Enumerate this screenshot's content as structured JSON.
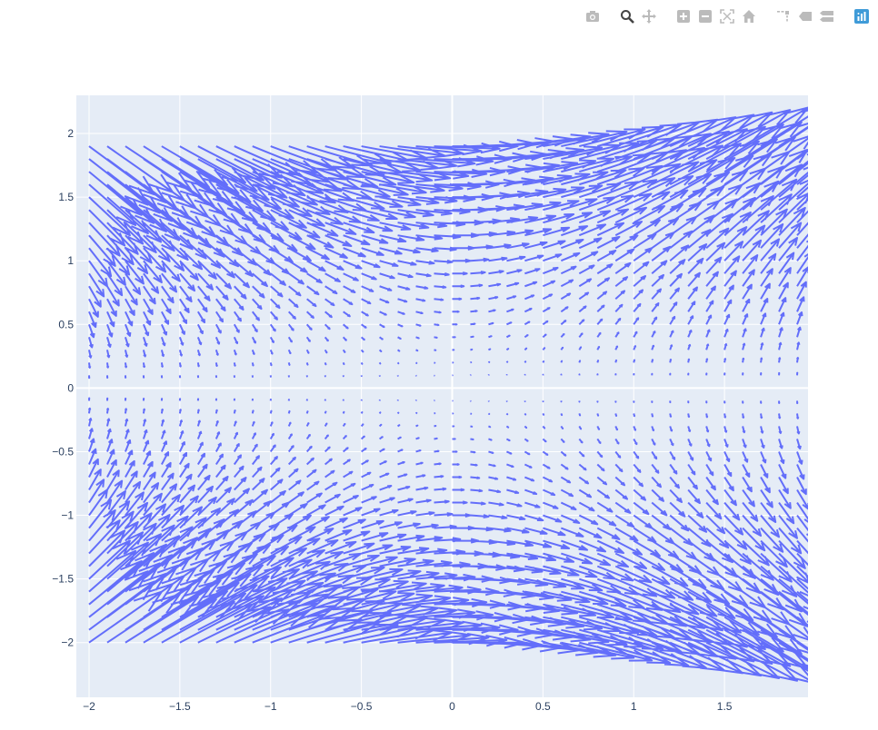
{
  "modebar": {
    "buttons": [
      {
        "name": "camera-icon",
        "group": 1
      },
      {
        "name": "zoom-icon",
        "group": 2,
        "active": true
      },
      {
        "name": "pan-icon",
        "group": 2
      },
      {
        "name": "zoom-in-icon",
        "group": 3
      },
      {
        "name": "zoom-out-icon",
        "group": 3
      },
      {
        "name": "autoscale-icon",
        "group": 3
      },
      {
        "name": "reset-axes-icon",
        "group": 3
      },
      {
        "name": "spike-lines-icon",
        "group": 4
      },
      {
        "name": "hover-closest-icon",
        "group": 4
      },
      {
        "name": "hover-compare-icon",
        "group": 4
      },
      {
        "name": "plotly-logo-icon",
        "group": 5
      }
    ],
    "colors": {
      "icon": "#bbbbbb",
      "active": "#444444",
      "logo": "#3f9bd8"
    }
  },
  "chart_data": {
    "type": "quiver",
    "field": {
      "u": "y*y",
      "v": "x*y",
      "note_visible": false
    },
    "grid": {
      "x_start": -2,
      "x_end": 1.9,
      "x_step": 0.1,
      "y_start": -2,
      "y_end": 1.9,
      "y_step": 0.1
    },
    "arrow_scale": 0.1,
    "series": [
      {
        "color": "#636efa"
      }
    ],
    "xlim": [
      -2.07,
      1.96
    ],
    "ylim": [
      -2.43,
      2.3
    ],
    "x_ticks": [
      {
        "v": -2,
        "label": "−2"
      },
      {
        "v": -1.5,
        "label": "−1.5"
      },
      {
        "v": -1,
        "label": "−1"
      },
      {
        "v": -0.5,
        "label": "−0.5"
      },
      {
        "v": 0,
        "label": "0"
      },
      {
        "v": 0.5,
        "label": "0.5"
      },
      {
        "v": 1,
        "label": "1"
      },
      {
        "v": 1.5,
        "label": "1.5"
      }
    ],
    "y_ticks": [
      {
        "v": -2,
        "label": "−2"
      },
      {
        "v": -1.5,
        "label": "−1.5"
      },
      {
        "v": -1,
        "label": "−1"
      },
      {
        "v": -0.5,
        "label": "−0.5"
      },
      {
        "v": 0,
        "label": "0"
      },
      {
        "v": 0.5,
        "label": "0.5"
      },
      {
        "v": 1,
        "label": "1"
      },
      {
        "v": 1.5,
        "label": "1.5"
      },
      {
        "v": 2,
        "label": "2"
      }
    ],
    "grid_on": true,
    "plot_bg": "#e5ecf6",
    "grid_color": "#ffffff"
  }
}
